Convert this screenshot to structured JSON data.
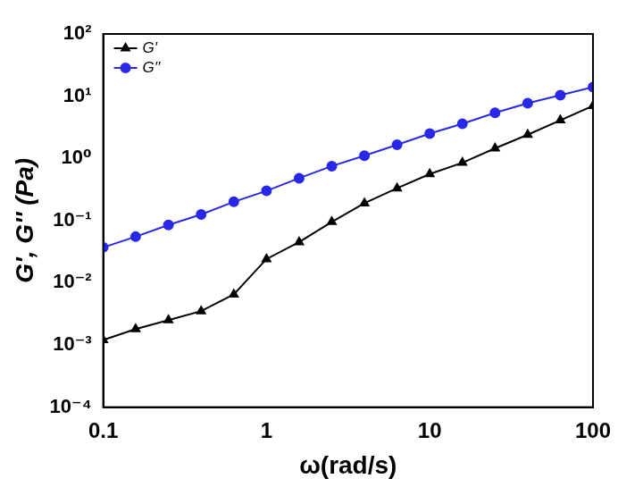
{
  "chart_data": {
    "type": "line",
    "x_label": "ω(rad/s)",
    "y_label": "G', G'' (Pa)",
    "log": true,
    "grid": false,
    "legend": "upper left",
    "x": [
      0.1,
      0.158,
      0.251,
      0.398,
      0.631,
      1,
      1.585,
      2.512,
      3.981,
      6.31,
      10,
      15.85,
      25.12,
      39.81,
      63.1,
      100
    ],
    "series": [
      {
        "name": "G'",
        "color": "#000000",
        "marker": "triangle",
        "values": [
          0.0012,
          0.0018,
          0.0025,
          0.0035,
          0.0065,
          0.024,
          0.045,
          0.095,
          0.19,
          0.33,
          0.56,
          0.85,
          1.45,
          2.4,
          4.1,
          7.0
        ]
      },
      {
        "name": "G''",
        "color": "#2828e6",
        "marker": "circle",
        "values": [
          0.037,
          0.055,
          0.085,
          0.125,
          0.2,
          0.3,
          0.48,
          0.75,
          1.1,
          1.65,
          2.5,
          3.6,
          5.4,
          7.7,
          10.4,
          14
        ]
      }
    ],
    "xlim": [
      0.1,
      100
    ],
    "xticks": [
      0.1,
      1,
      10,
      100
    ],
    "ylim": [
      0.0001,
      100
    ],
    "yticks": [
      {
        "value": 0.0001,
        "label": "10⁻⁴"
      },
      {
        "value": 0.001,
        "label": "10⁻³"
      },
      {
        "value": 0.01,
        "label": "10⁻²"
      },
      {
        "value": 0.1,
        "label": "10⁻¹"
      },
      {
        "value": 1,
        "label": "10⁰"
      },
      {
        "value": 10,
        "label": "10¹"
      },
      {
        "value": 100,
        "label": "10²"
      }
    ]
  }
}
